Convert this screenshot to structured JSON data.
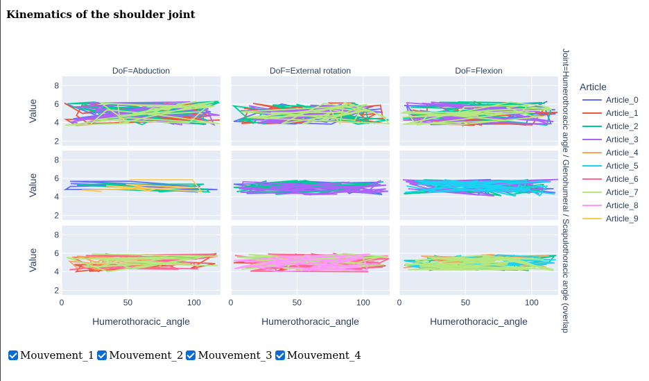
{
  "page": {
    "title": "Kinematics of the shoulder joint"
  },
  "checkboxes": [
    {
      "label": "Mouvement_1",
      "checked": true
    },
    {
      "label": "Mouvement_2",
      "checked": true
    },
    {
      "label": "Mouvement_3",
      "checked": true
    },
    {
      "label": "Mouvement_4",
      "checked": true
    }
  ],
  "chart_data": {
    "type": "line",
    "facet_col_labels": [
      "DoF=Abduction",
      "DoF=External rotation",
      "DoF=Flexion"
    ],
    "facet_row_label": "Joint=Humerothoracic angle / Glenohumeral / Scapulothoracic angle (overlapping facet labels)",
    "xlabel": "Humerothoracic_angle",
    "ylabel": "Value",
    "xlim": [
      0,
      120
    ],
    "ylim": [
      1.5,
      9
    ],
    "xticks": [
      0,
      50,
      100
    ],
    "yticks": [
      2,
      4,
      6,
      8
    ],
    "legend_title": "Article",
    "legend_position": "right",
    "grid": true,
    "series": [
      {
        "name": "Article_0",
        "color": "#636efa"
      },
      {
        "name": "Article_1",
        "color": "#ef553b"
      },
      {
        "name": "Article_2",
        "color": "#00cc96"
      },
      {
        "name": "Article_3",
        "color": "#ab63fa"
      },
      {
        "name": "Article_4",
        "color": "#ffa15a"
      },
      {
        "name": "Article_5",
        "color": "#19d3f3"
      },
      {
        "name": "Article_6",
        "color": "#ff6692"
      },
      {
        "name": "Article_7",
        "color": "#b6e880"
      },
      {
        "name": "Article_8",
        "color": "#ff97ff"
      },
      {
        "name": "Article_9",
        "color": "#fecb52"
      }
    ],
    "panels": [
      {
        "row": 0,
        "col": 0,
        "series": [
          0,
          1,
          2,
          3,
          7
        ],
        "mean": 5.0,
        "spread": 1.3,
        "n": 30
      },
      {
        "row": 0,
        "col": 1,
        "series": [
          0,
          1,
          2,
          3,
          7
        ],
        "mean": 5.0,
        "spread": 1.2,
        "n": 30
      },
      {
        "row": 0,
        "col": 2,
        "series": [
          0,
          1,
          2,
          3,
          7
        ],
        "mean": 5.0,
        "spread": 1.3,
        "n": 30
      },
      {
        "row": 1,
        "col": 0,
        "series": [
          0,
          2,
          9
        ],
        "mean": 5.2,
        "spread": 0.7,
        "n": 10
      },
      {
        "row": 1,
        "col": 1,
        "series": [
          0,
          2,
          3
        ],
        "mean": 5.0,
        "spread": 0.8,
        "n": 30
      },
      {
        "row": 1,
        "col": 2,
        "series": [
          0,
          2,
          3,
          5
        ],
        "mean": 5.0,
        "spread": 0.9,
        "n": 30
      },
      {
        "row": 2,
        "col": 0,
        "series": [
          1,
          4,
          6,
          7
        ],
        "mean": 5.0,
        "spread": 1.0,
        "n": 20
      },
      {
        "row": 2,
        "col": 1,
        "series": [
          1,
          4,
          6,
          7,
          8
        ],
        "mean": 5.0,
        "spread": 1.0,
        "n": 30
      },
      {
        "row": 2,
        "col": 2,
        "series": [
          2,
          4,
          5,
          7
        ],
        "mean": 5.0,
        "spread": 0.9,
        "n": 30
      }
    ]
  }
}
